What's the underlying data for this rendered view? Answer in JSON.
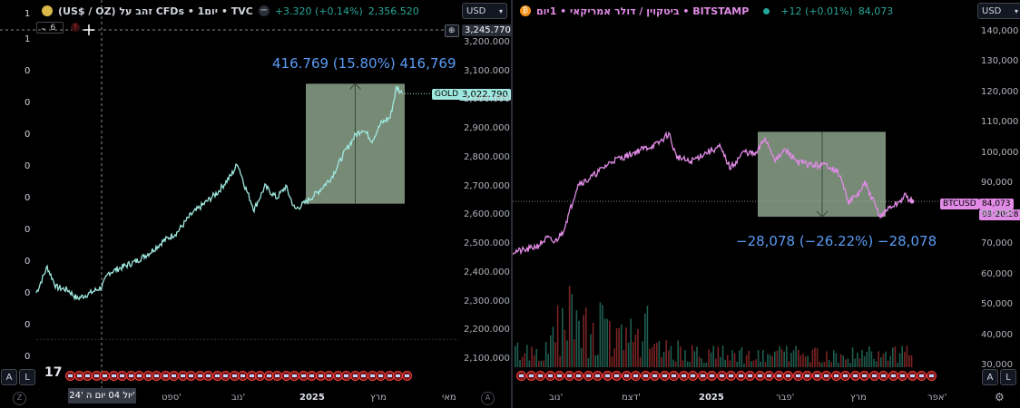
{
  "left": {
    "header": {
      "symbol_icon": "gold-coin-icon",
      "title": "(US$ / OZ) זהב על CFDs • 1יום • TVC",
      "change": "+3.320 (+0.14%)",
      "price": "2,356.520",
      "currency": "USD"
    },
    "indicator_count": "6",
    "left_numbers": [
      "1",
      "1",
      "0",
      "0",
      "0",
      "0",
      "0",
      "0",
      "0",
      "0",
      "0",
      "0"
    ],
    "crosshair_price": "3,245.770",
    "last_label": "GOLD",
    "last_price": "3,022.790",
    "measure_text": "416.769 (15.80%) 416,769",
    "x_labels": [
      "24' יול 04 יום ה'",
      "ספט'",
      "נוב'",
      "2025",
      "מרץ",
      "מאי"
    ],
    "scale_buttons": [
      "A",
      "L"
    ],
    "tv_logo": "tradingview-logo-icon",
    "colors": {
      "line": "#9fe8df",
      "box": "#9fb89e",
      "crosshair": "#8a8a8a",
      "measure": "#5b9cf6"
    }
  },
  "right": {
    "header": {
      "symbol_icon": "bitcoin-icon",
      "title": "ביטקוין / דולר אמריקאי • 1יום • BITSTAMP",
      "change": "+12 (+0.01%)",
      "price": "84,073",
      "currency": "USD"
    },
    "last_label": "BTCUSD",
    "last_price": "84,073",
    "last_time": "09:20:28",
    "measure_text": "−28,078 (−26.22%) −28,078",
    "x_labels": [
      "נוב'",
      "דצמ'",
      "2025",
      "פבר'",
      "מרץ",
      "אפר'"
    ],
    "scale_buttons": [
      "A",
      "L"
    ],
    "colors": {
      "line": "#e18be6",
      "box": "#9fb89e",
      "vol_up": "#1f5e4f",
      "vol_down": "#7a2424"
    }
  },
  "chart_data": [
    {
      "type": "line",
      "series": [
        {
          "name": "GOLD",
          "x": [
            "2024-06",
            "2024-07",
            "2024-08",
            "2024-09",
            "2024-10",
            "2024-11",
            "2024-12",
            "2025-01",
            "2025-02",
            "2025-03",
            "2025-04"
          ],
          "values": [
            2330,
            2380,
            2440,
            2570,
            2720,
            2640,
            2650,
            2700,
            2880,
            2950,
            3022.79
          ]
        }
      ],
      "ylim": [
        2050,
        3300
      ],
      "y_ticks": [
        2100,
        2200,
        2300,
        2400,
        2500,
        2600,
        2700,
        2800,
        2900,
        3000,
        3100,
        3200
      ],
      "y_tick_labels": [
        "2,100.000",
        "2,200.000",
        "2,300.000",
        "2,400.000",
        "2,500.000",
        "2,600.000",
        "2,700.000",
        "2,800.000",
        "2,900.000",
        "3,000.000",
        "3,100.000",
        "3,200.000"
      ]
    },
    {
      "type": "line",
      "series": [
        {
          "name": "BTCUSD",
          "x": [
            "2024-10",
            "2024-11",
            "2024-12",
            "2025-01",
            "2025-02",
            "2025-03",
            "2025-04"
          ],
          "values": [
            68000,
            90000,
            100000,
            104000,
            97000,
            84000,
            84073
          ]
        }
      ],
      "ylim": [
        28000,
        145000
      ],
      "y_ticks": [
        30000,
        40000,
        50000,
        60000,
        70000,
        80000,
        90000,
        100000,
        110000,
        120000,
        130000,
        140000
      ],
      "y_tick_labels": [
        "30,000",
        "40,000",
        "50,000",
        "60,000",
        "70,000",
        "80,000",
        "90,000",
        "100,000",
        "110,000",
        "120,000",
        "130,000",
        "140,000"
      ]
    }
  ]
}
